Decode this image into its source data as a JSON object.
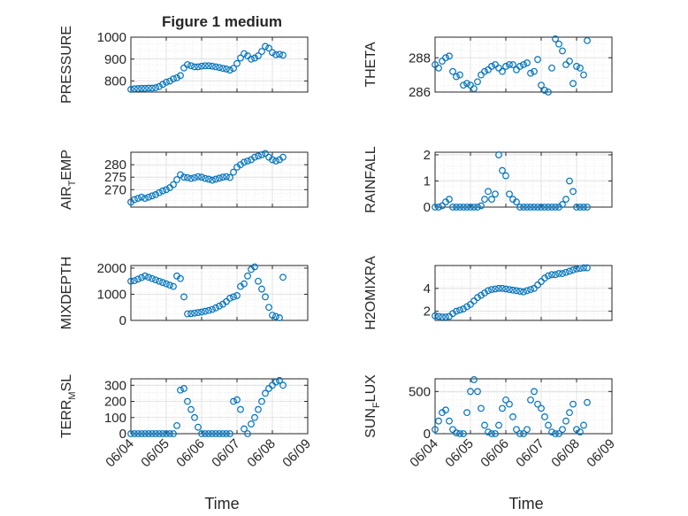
{
  "figure": {
    "title": "Figure 1 medium",
    "xlabel_left": "Time",
    "xlabel_right": "Time"
  },
  "colors": {
    "marker": "#0072BD",
    "axis": "#262626",
    "grid": "#dcdcdc",
    "background": "#ffffff"
  },
  "chart_data": [
    {
      "type": "scatter",
      "marker": "open-circle",
      "ylabel": "PRESSURE",
      "title": "Figure 1 medium",
      "x_ticks": [
        "06/04",
        "06/05",
        "06/06",
        "06/07",
        "06/08",
        "06/09"
      ],
      "xlim": [
        0,
        5
      ],
      "ylim": [
        750,
        1000
      ],
      "yticks": [
        800,
        900,
        1000
      ],
      "grid": "on",
      "x": [
        0.0,
        0.1,
        0.2,
        0.3,
        0.4,
        0.5,
        0.6,
        0.7,
        0.8,
        0.9,
        1.0,
        1.1,
        1.2,
        1.3,
        1.4,
        1.5,
        1.6,
        1.7,
        1.8,
        1.9,
        2.0,
        2.1,
        2.2,
        2.3,
        2.4,
        2.5,
        2.6,
        2.7,
        2.8,
        2.9,
        3.0,
        3.1,
        3.2,
        3.3,
        3.4,
        3.5,
        3.6,
        3.7,
        3.8,
        3.9,
        4.0,
        4.1,
        4.2,
        4.3
      ],
      "y": [
        762,
        765,
        766,
        767,
        767,
        768,
        768,
        770,
        775,
        785,
        795,
        800,
        810,
        815,
        825,
        860,
        875,
        870,
        865,
        865,
        868,
        870,
        870,
        868,
        865,
        862,
        858,
        855,
        850,
        858,
        880,
        905,
        925,
        915,
        900,
        905,
        915,
        935,
        958,
        950,
        930,
        920,
        922,
        918
      ]
    },
    {
      "type": "scatter",
      "marker": "open-circle",
      "ylabel": "THETA",
      "x_ticks": [
        "06/04",
        "06/05",
        "06/06",
        "06/07",
        "06/08",
        "06/09"
      ],
      "xlim": [
        0,
        5
      ],
      "ylim": [
        286,
        289.2
      ],
      "yticks": [
        286,
        288
      ],
      "grid": "on",
      "x": [
        0.0,
        0.1,
        0.2,
        0.3,
        0.4,
        0.5,
        0.6,
        0.7,
        0.8,
        0.9,
        1.0,
        1.1,
        1.2,
        1.3,
        1.4,
        1.5,
        1.6,
        1.7,
        1.8,
        1.9,
        2.0,
        2.1,
        2.2,
        2.3,
        2.4,
        2.5,
        2.6,
        2.7,
        2.8,
        2.9,
        3.0,
        3.1,
        3.2,
        3.3,
        3.4,
        3.5,
        3.6,
        3.7,
        3.8,
        3.9,
        4.0,
        4.1,
        4.2,
        4.3
      ],
      "y": [
        287.6,
        287.4,
        287.8,
        288.0,
        288.1,
        287.2,
        286.9,
        287.0,
        286.4,
        286.5,
        286.4,
        286.2,
        286.6,
        287.0,
        287.2,
        287.3,
        287.5,
        287.6,
        287.4,
        287.2,
        287.5,
        287.6,
        287.6,
        287.3,
        287.5,
        287.6,
        287.7,
        287.1,
        287.2,
        287.9,
        286.4,
        286.1,
        286.0,
        287.4,
        289.1,
        288.8,
        288.4,
        287.6,
        287.8,
        286.5,
        287.5,
        287.4,
        287.0,
        289.0
      ]
    },
    {
      "type": "scatter",
      "marker": "open-circle",
      "ylabel": "AIR_TEMP",
      "x_ticks": [
        "06/04",
        "06/05",
        "06/06",
        "06/07",
        "06/08",
        "06/09"
      ],
      "xlim": [
        0,
        5
      ],
      "ylim": [
        263,
        285
      ],
      "yticks": [
        270,
        275,
        280
      ],
      "grid": "on",
      "x": [
        0.0,
        0.1,
        0.2,
        0.3,
        0.4,
        0.5,
        0.6,
        0.7,
        0.8,
        0.9,
        1.0,
        1.1,
        1.2,
        1.3,
        1.4,
        1.5,
        1.6,
        1.7,
        1.8,
        1.9,
        2.0,
        2.1,
        2.2,
        2.3,
        2.4,
        2.5,
        2.6,
        2.7,
        2.8,
        2.9,
        3.0,
        3.1,
        3.2,
        3.3,
        3.4,
        3.5,
        3.6,
        3.7,
        3.8,
        3.9,
        4.0,
        4.1,
        4.2,
        4.3
      ],
      "y": [
        265,
        266,
        266.5,
        267,
        266.5,
        267,
        267.5,
        268,
        268.8,
        269.5,
        270,
        270.8,
        272,
        274,
        276,
        275,
        274.8,
        274.5,
        274.8,
        275.2,
        275,
        274.5,
        274.2,
        273.8,
        274.2,
        274.6,
        275,
        275.2,
        274.9,
        277,
        279,
        280,
        281,
        281.5,
        282,
        283,
        283.5,
        284,
        284.5,
        283,
        282,
        281.5,
        282,
        283
      ]
    },
    {
      "type": "scatter",
      "marker": "open-circle",
      "ylabel": "RAINFALL",
      "x_ticks": [
        "06/04",
        "06/05",
        "06/06",
        "06/07",
        "06/08",
        "06/09"
      ],
      "xlim": [
        0,
        5
      ],
      "ylim": [
        0,
        2.1
      ],
      "yticks": [
        0,
        1,
        2
      ],
      "grid": "on",
      "x": [
        0.0,
        0.1,
        0.2,
        0.3,
        0.4,
        0.5,
        0.6,
        0.7,
        0.8,
        0.9,
        1.0,
        1.1,
        1.2,
        1.3,
        1.4,
        1.5,
        1.6,
        1.7,
        1.8,
        1.9,
        2.0,
        2.1,
        2.2,
        2.3,
        2.4,
        2.5,
        2.6,
        2.7,
        2.8,
        2.9,
        3.0,
        3.1,
        3.2,
        3.3,
        3.4,
        3.5,
        3.6,
        3.7,
        3.8,
        3.9,
        4.0,
        4.1,
        4.2,
        4.3
      ],
      "y": [
        0,
        0,
        0.05,
        0.2,
        0.3,
        0,
        0,
        0,
        0,
        0,
        0,
        0,
        0,
        0.05,
        0.3,
        0.6,
        0.3,
        0.5,
        2.0,
        1.4,
        1.2,
        0.5,
        0.3,
        0.2,
        0,
        0,
        0,
        0,
        0,
        0,
        0,
        0,
        0,
        0,
        0,
        0,
        0.1,
        0.3,
        1.0,
        0.6,
        0,
        0,
        0,
        0
      ]
    },
    {
      "type": "scatter",
      "marker": "open-circle",
      "ylabel": "MIXDEPTH",
      "x_ticks": [
        "06/04",
        "06/05",
        "06/06",
        "06/07",
        "06/08",
        "06/09"
      ],
      "xlim": [
        0,
        5
      ],
      "ylim": [
        0,
        2100
      ],
      "yticks": [
        0,
        1000,
        2000
      ],
      "grid": "on",
      "x": [
        0.0,
        0.1,
        0.2,
        0.3,
        0.4,
        0.5,
        0.6,
        0.7,
        0.8,
        0.9,
        1.0,
        1.1,
        1.2,
        1.3,
        1.4,
        1.5,
        1.6,
        1.7,
        1.8,
        1.9,
        2.0,
        2.1,
        2.2,
        2.3,
        2.4,
        2.5,
        2.6,
        2.7,
        2.8,
        2.9,
        3.0,
        3.1,
        3.2,
        3.3,
        3.4,
        3.5,
        3.6,
        3.7,
        3.8,
        3.9,
        4.0,
        4.1,
        4.2,
        4.3
      ],
      "y": [
        1500,
        1520,
        1580,
        1640,
        1700,
        1650,
        1600,
        1550,
        1500,
        1450,
        1400,
        1350,
        1300,
        1700,
        1600,
        900,
        250,
        260,
        280,
        300,
        320,
        350,
        380,
        420,
        480,
        550,
        620,
        720,
        850,
        900,
        950,
        1300,
        1400,
        1700,
        1950,
        2050,
        1500,
        1200,
        900,
        500,
        200,
        150,
        100,
        1650
      ]
    },
    {
      "type": "scatter",
      "marker": "open-circle",
      "ylabel": "H2OMIXRA",
      "x_ticks": [
        "06/04",
        "06/05",
        "06/06",
        "06/07",
        "06/08",
        "06/09"
      ],
      "xlim": [
        0,
        5
      ],
      "ylim": [
        1.2,
        6
      ],
      "yticks": [
        2,
        4
      ],
      "grid": "on",
      "x": [
        0.0,
        0.1,
        0.2,
        0.3,
        0.4,
        0.5,
        0.6,
        0.7,
        0.8,
        0.9,
        1.0,
        1.1,
        1.2,
        1.3,
        1.4,
        1.5,
        1.6,
        1.7,
        1.8,
        1.9,
        2.0,
        2.1,
        2.2,
        2.3,
        2.4,
        2.5,
        2.6,
        2.7,
        2.8,
        2.9,
        3.0,
        3.1,
        3.2,
        3.3,
        3.4,
        3.5,
        3.6,
        3.7,
        3.8,
        3.9,
        4.0,
        4.1,
        4.2,
        4.3
      ],
      "y": [
        1.6,
        1.55,
        1.5,
        1.5,
        1.55,
        1.8,
        2.0,
        2.1,
        2.2,
        2.4,
        2.6,
        2.9,
        3.2,
        3.4,
        3.6,
        3.8,
        3.9,
        3.95,
        4.0,
        4.0,
        3.95,
        3.9,
        3.85,
        3.8,
        3.75,
        3.7,
        3.8,
        3.9,
        4.0,
        4.3,
        4.6,
        4.9,
        5.1,
        5.2,
        5.2,
        5.3,
        5.3,
        5.4,
        5.5,
        5.6,
        5.7,
        5.75,
        5.8,
        5.8
      ]
    },
    {
      "type": "scatter",
      "marker": "open-circle",
      "ylabel": "TERR_MSL",
      "x_ticks": [
        "06/04",
        "06/05",
        "06/06",
        "06/07",
        "06/08",
        "06/09"
      ],
      "xlim": [
        0,
        5
      ],
      "ylim": [
        0,
        340
      ],
      "yticks": [
        0,
        100,
        200,
        300
      ],
      "grid": "on",
      "x": [
        0.0,
        0.1,
        0.2,
        0.3,
        0.4,
        0.5,
        0.6,
        0.7,
        0.8,
        0.9,
        1.0,
        1.1,
        1.2,
        1.3,
        1.4,
        1.5,
        1.6,
        1.7,
        1.8,
        1.9,
        2.0,
        2.1,
        2.2,
        2.3,
        2.4,
        2.5,
        2.6,
        2.7,
        2.8,
        2.9,
        3.0,
        3.1,
        3.2,
        3.3,
        3.4,
        3.5,
        3.6,
        3.7,
        3.8,
        3.9,
        4.0,
        4.1,
        4.2,
        4.3
      ],
      "y": [
        0,
        0,
        0,
        0,
        0,
        0,
        0,
        0,
        0,
        0,
        0,
        0,
        0,
        50,
        270,
        280,
        200,
        150,
        100,
        40,
        0,
        0,
        0,
        0,
        0,
        0,
        0,
        0,
        0,
        200,
        210,
        150,
        30,
        0,
        60,
        100,
        150,
        200,
        250,
        280,
        300,
        320,
        330,
        300
      ]
    },
    {
      "type": "scatter",
      "marker": "open-circle",
      "ylabel": "SUN_FLUX",
      "x_ticks": [
        "06/04",
        "06/05",
        "06/06",
        "06/07",
        "06/08",
        "06/09"
      ],
      "xlim": [
        0,
        5
      ],
      "ylim": [
        0,
        650
      ],
      "yticks": [
        0,
        500
      ],
      "grid": "on",
      "x": [
        0.0,
        0.1,
        0.2,
        0.3,
        0.4,
        0.5,
        0.6,
        0.7,
        0.8,
        0.9,
        1.0,
        1.1,
        1.2,
        1.3,
        1.4,
        1.5,
        1.6,
        1.7,
        1.8,
        1.9,
        2.0,
        2.1,
        2.2,
        2.3,
        2.4,
        2.5,
        2.6,
        2.7,
        2.8,
        2.9,
        3.0,
        3.1,
        3.2,
        3.3,
        3.4,
        3.5,
        3.6,
        3.7,
        3.8,
        3.9,
        4.0,
        4.1,
        4.2,
        4.3
      ],
      "y": [
        50,
        150,
        250,
        280,
        150,
        50,
        10,
        0,
        0,
        250,
        500,
        640,
        500,
        300,
        100,
        20,
        0,
        0,
        100,
        300,
        400,
        350,
        200,
        50,
        0,
        0,
        50,
        400,
        500,
        350,
        300,
        200,
        100,
        20,
        0,
        0,
        50,
        150,
        250,
        350,
        50,
        20,
        100,
        370
      ]
    }
  ]
}
